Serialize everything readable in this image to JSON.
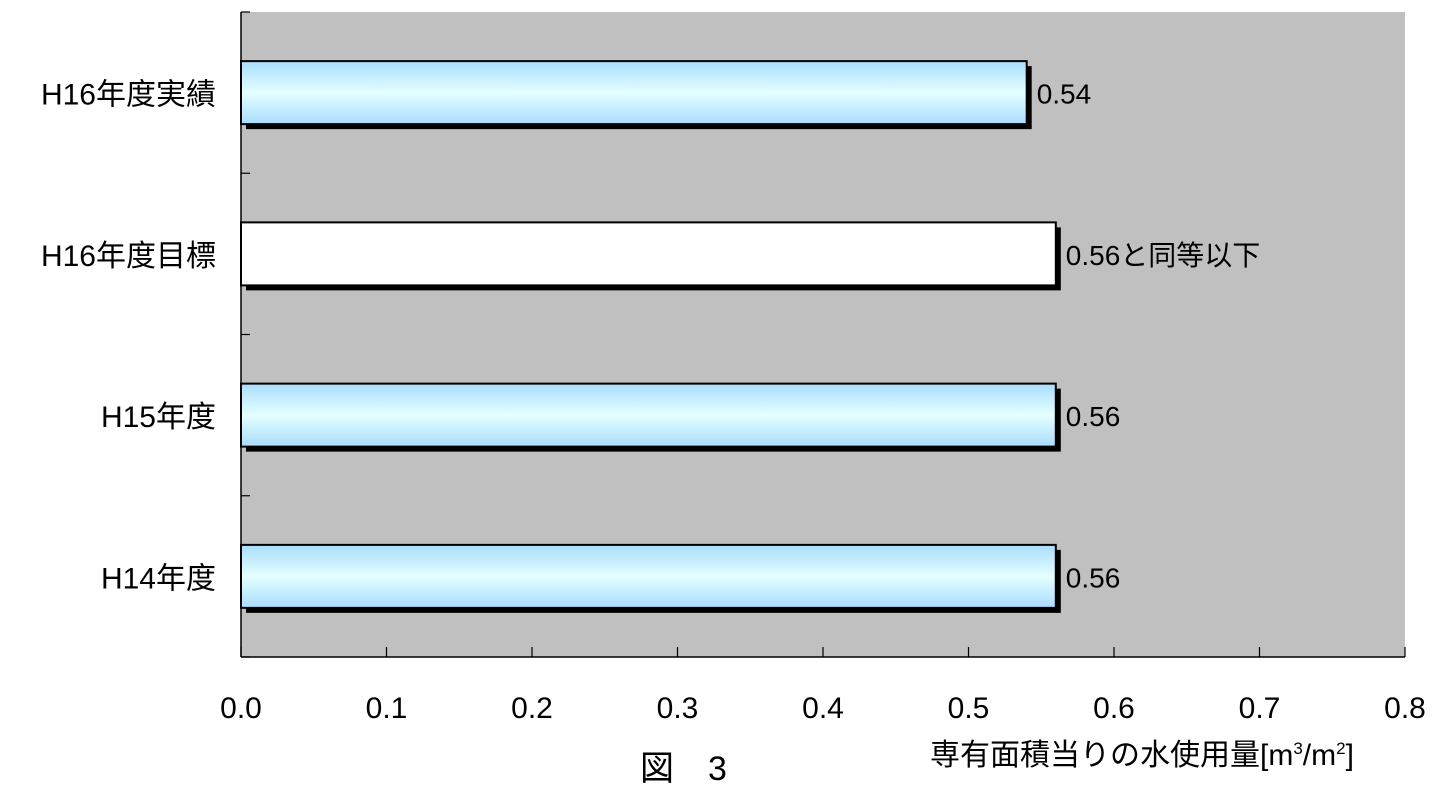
{
  "figure_caption": "図　3",
  "unit_label": {
    "prefix": "専有面積当りの水使用量[m",
    "sup1": "3",
    "mid": "/m",
    "sup2": "2",
    "suffix": "]"
  },
  "colors": {
    "plot_background": "#c0c0c0",
    "bar_gradient_edge": "#a9dcff",
    "bar_gradient_center": "#e4ffff",
    "target_bar": "#ffffff",
    "bar_outline": "#000000",
    "bar_shadow": "#000000"
  },
  "chart_data": {
    "type": "bar",
    "orientation": "horizontal",
    "categories": [
      "H16年度実績",
      "H16年度目標",
      "H15年度",
      "H14年度"
    ],
    "values": [
      0.54,
      0.56,
      0.56,
      0.56
    ],
    "data_labels": [
      "0.54",
      "0.56と同等以下",
      "0.56",
      "0.56"
    ],
    "bar_styles": [
      "gradient",
      "white",
      "gradient",
      "gradient"
    ],
    "xlim": [
      0,
      0.8
    ],
    "x_ticks": [
      "0.0",
      "0.1",
      "0.2",
      "0.3",
      "0.4",
      "0.5",
      "0.6",
      "0.7",
      "0.8"
    ],
    "xlabel": "",
    "ylabel": "",
    "grid": false,
    "legend": "none"
  }
}
